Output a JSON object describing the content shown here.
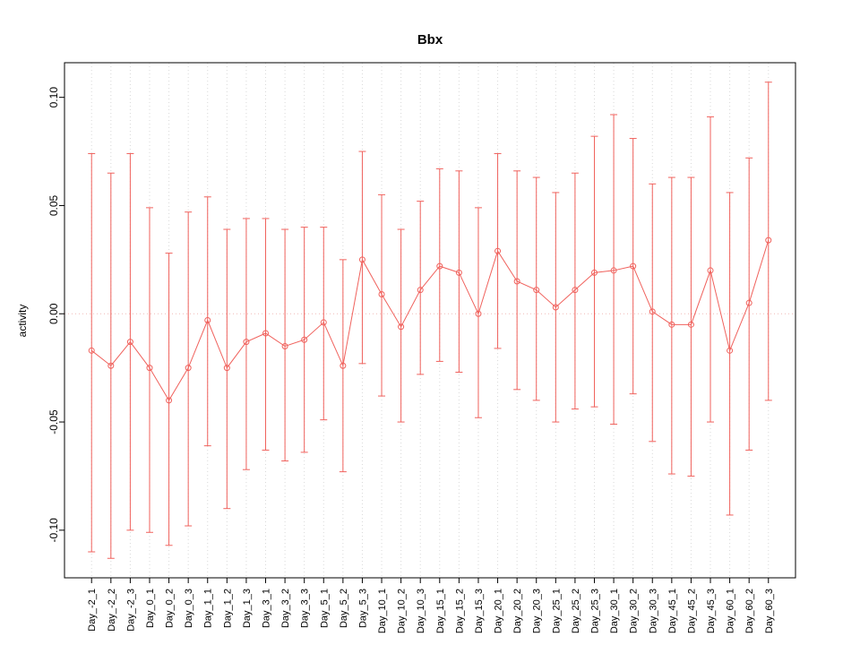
{
  "chart_data": {
    "type": "line",
    "title": "Bbx",
    "xlabel": "",
    "ylabel": "activity",
    "ylim": [
      -0.122,
      0.116
    ],
    "ytick_values": [
      -0.1,
      -0.05,
      0,
      0.05,
      0.1
    ],
    "ytick_labels": [
      "-0.10",
      "-0.05",
      "0.00",
      "0.05",
      "0.10"
    ],
    "grid": "vertical dotted gridline at each category; dotted horizontal line at y=0",
    "legend": "none",
    "marker": "open-circle",
    "error_bars": "caps top and bottom",
    "colors": {
      "series": "#f0625d",
      "grid": "#d9d9d9",
      "zero_line": "#f0b9b6",
      "axis": "#000000"
    },
    "categories": [
      "Day_-2_1",
      "Day_-2_2",
      "Day_-2_3",
      "Day_0_1",
      "Day_0_2",
      "Day_0_3",
      "Day_1_1",
      "Day_1_2",
      "Day_1_3",
      "Day_3_1",
      "Day_3_2",
      "Day_3_3",
      "Day_5_1",
      "Day_5_2",
      "Day_5_3",
      "Day_10_1",
      "Day_10_2",
      "Day_10_3",
      "Day_15_1",
      "Day_15_2",
      "Day_15_3",
      "Day_20_1",
      "Day_20_2",
      "Day_20_3",
      "Day_25_1",
      "Day_25_2",
      "Day_25_3",
      "Day_30_1",
      "Day_30_2",
      "Day_30_3",
      "Day_45_1",
      "Day_45_2",
      "Day_45_3",
      "Day_60_1",
      "Day_60_2",
      "Day_60_3"
    ],
    "values": [
      -0.017,
      -0.024,
      -0.013,
      -0.025,
      -0.04,
      -0.025,
      -0.003,
      -0.025,
      -0.013,
      -0.009,
      -0.015,
      -0.012,
      -0.004,
      -0.024,
      0.025,
      0.009,
      -0.006,
      0.011,
      0.022,
      0.019,
      0.0,
      0.029,
      0.015,
      0.011,
      0.003,
      0.011,
      0.019,
      0.02,
      0.022,
      0.001,
      -0.005,
      -0.005,
      0.02,
      -0.017,
      0.005,
      0.034
    ],
    "upper": [
      0.074,
      0.065,
      0.074,
      0.049,
      0.028,
      0.047,
      0.054,
      0.039,
      0.044,
      0.044,
      0.039,
      0.04,
      0.04,
      0.025,
      0.075,
      0.055,
      0.039,
      0.052,
      0.067,
      0.066,
      0.049,
      0.074,
      0.066,
      0.063,
      0.056,
      0.065,
      0.082,
      0.092,
      0.081,
      0.06,
      0.063,
      0.063,
      0.091,
      0.056,
      0.072,
      0.107
    ],
    "lower": [
      -0.11,
      -0.113,
      -0.1,
      -0.101,
      -0.107,
      -0.098,
      -0.061,
      -0.09,
      -0.072,
      -0.063,
      -0.068,
      -0.064,
      -0.049,
      -0.073,
      -0.023,
      -0.038,
      -0.05,
      -0.028,
      -0.022,
      -0.027,
      -0.048,
      -0.016,
      -0.035,
      -0.04,
      -0.05,
      -0.044,
      -0.043,
      -0.051,
      -0.037,
      -0.059,
      -0.074,
      -0.075,
      -0.05,
      -0.093,
      -0.063,
      -0.04
    ]
  }
}
